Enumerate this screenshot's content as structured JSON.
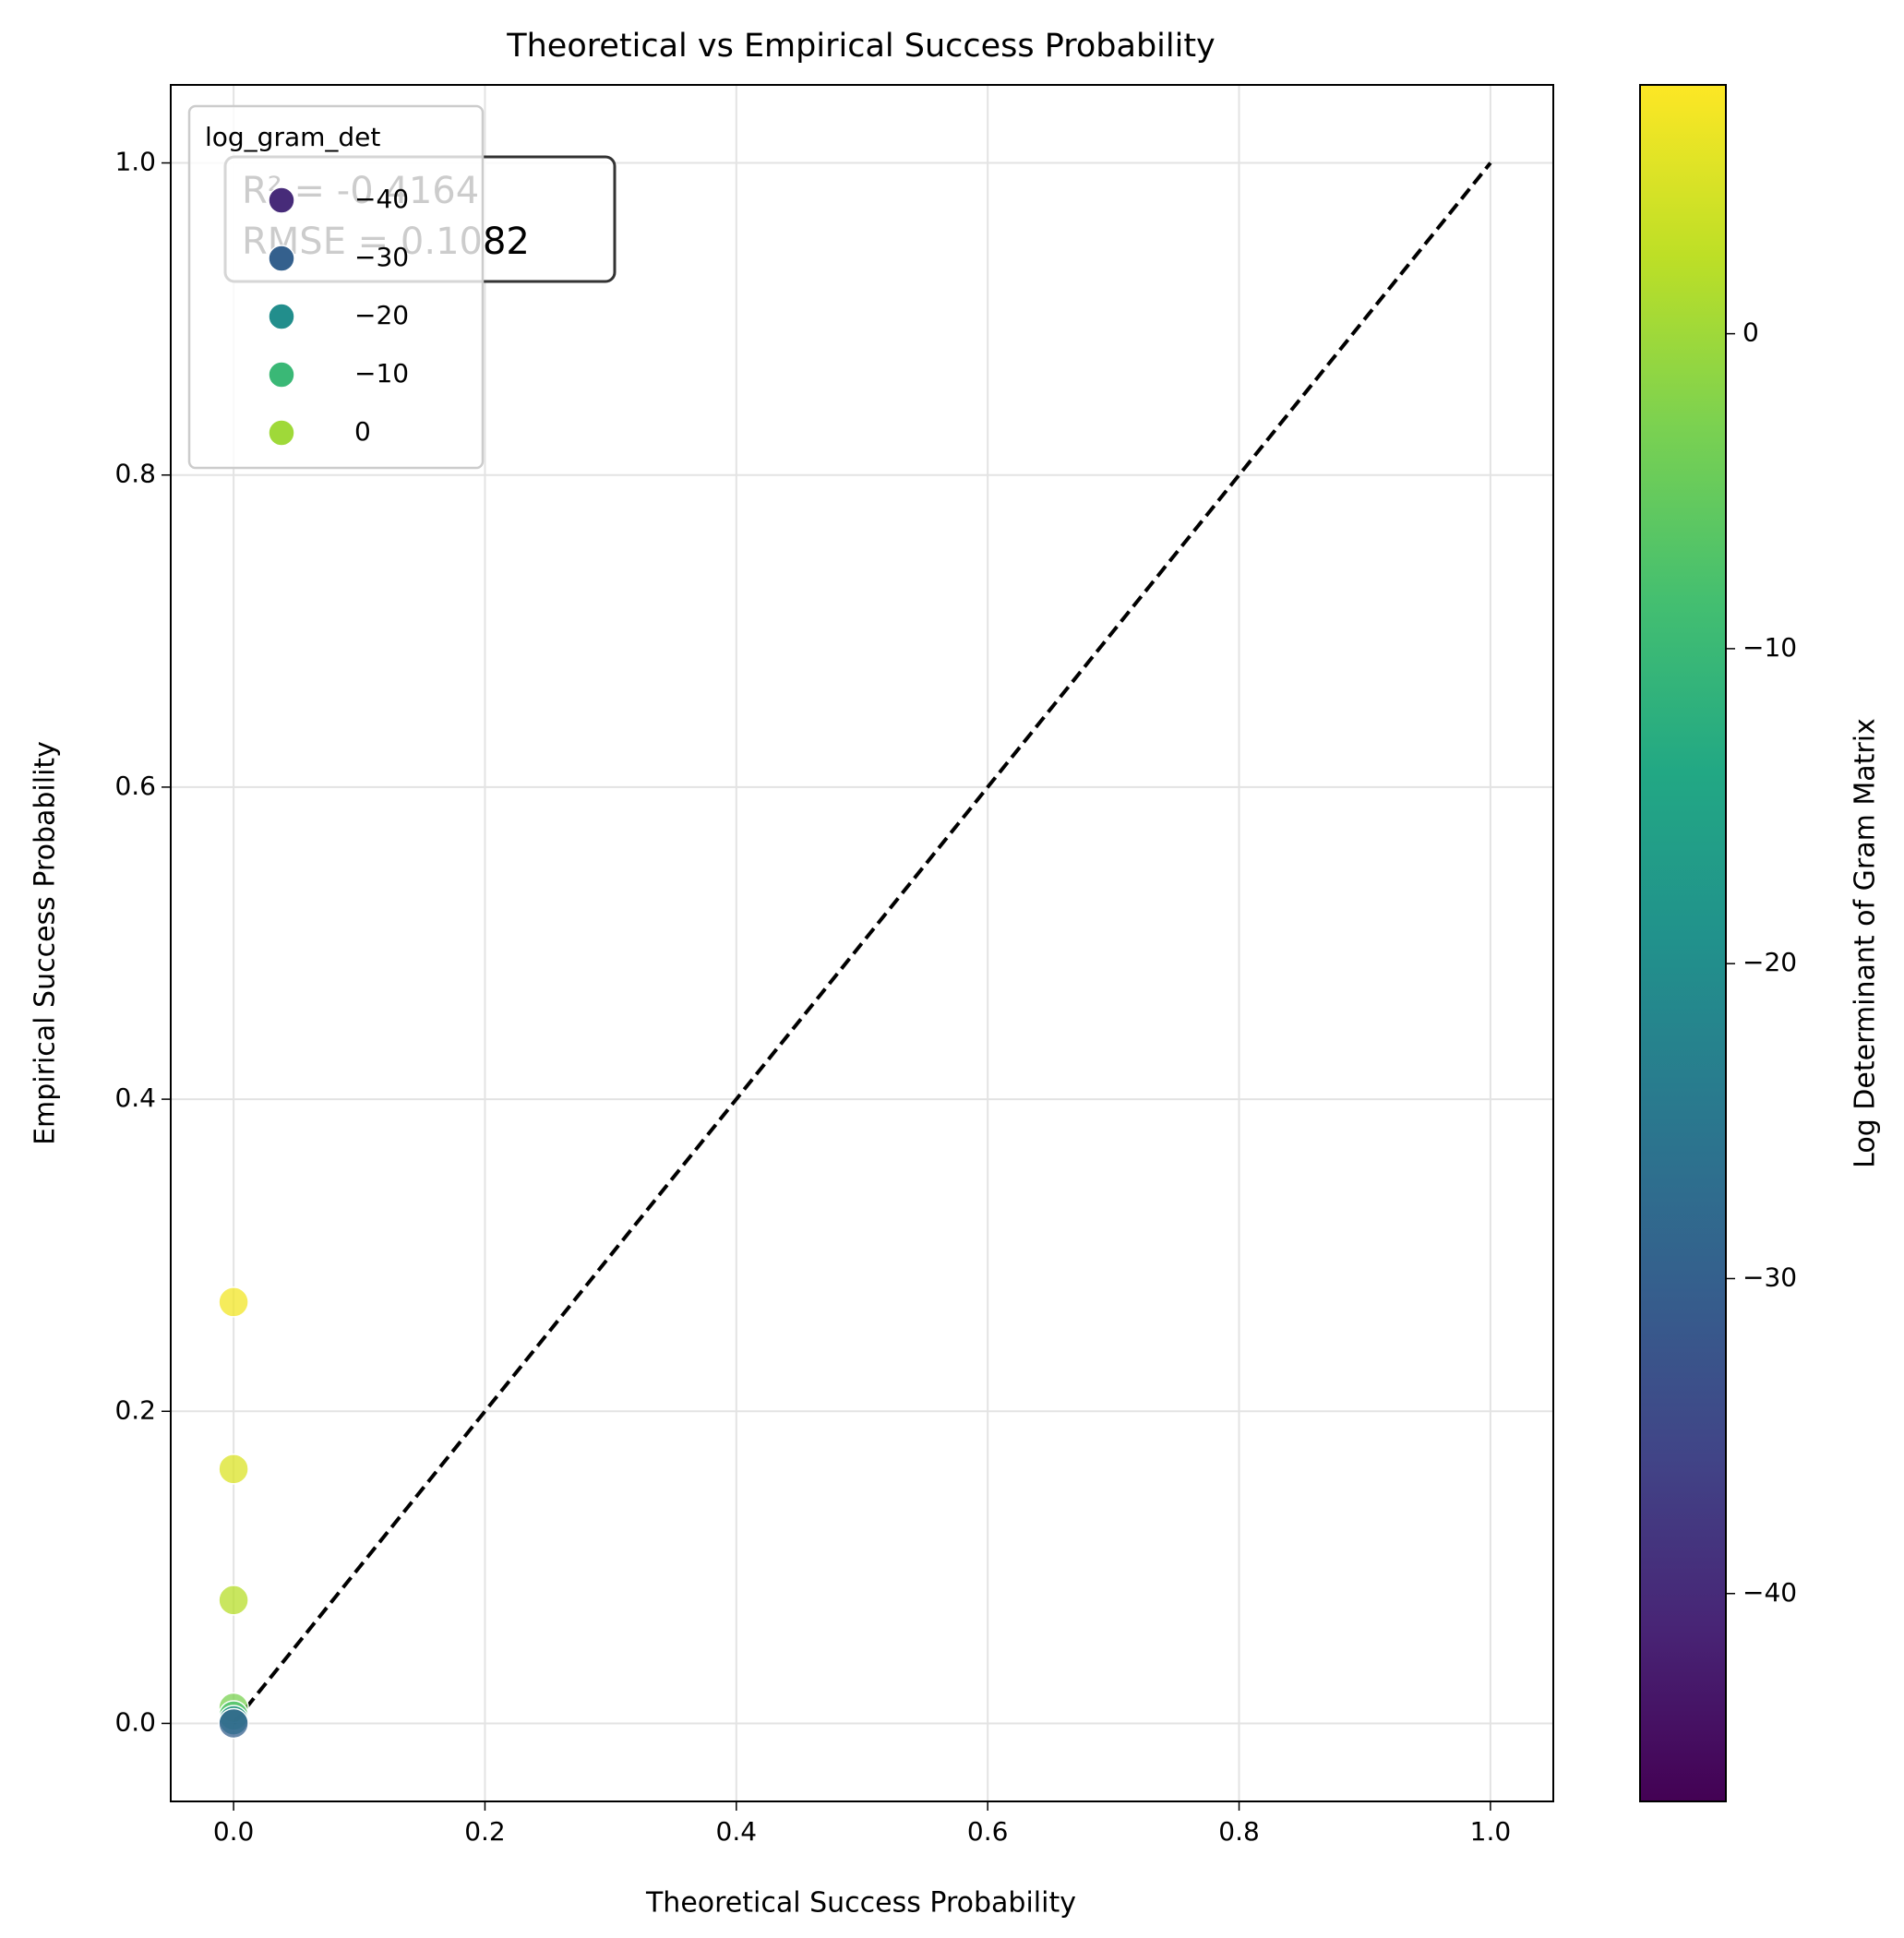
{
  "chart_data": {
    "type": "scatter",
    "title": "Theoretical vs Empirical Success Probability",
    "x_label": "Theoretical Success Probability",
    "y_label": "Empirical Success Probability",
    "x": [
      0,
      0,
      0,
      0,
      0,
      0,
      0
    ],
    "y": [
      0.27,
      0.163,
      0.079,
      0.01,
      0.005,
      0.002,
      0.0
    ],
    "c": [
      7,
      5,
      2,
      -3,
      -8,
      -20,
      -30
    ],
    "colormap": "viridis",
    "xlim": [
      -0.05,
      1.05
    ],
    "ylim": [
      -0.05,
      1.05
    ],
    "xticks": [
      {
        "value": 0,
        "label": "0.0"
      },
      0.2,
      0.4,
      0.6,
      0.8,
      {
        "value": 1,
        "label": "1.0"
      }
    ],
    "yticks": [
      {
        "value": 0,
        "label": "0.0"
      },
      0.2,
      0.4,
      0.6,
      0.8,
      {
        "value": 1,
        "label": "1.0"
      }
    ],
    "grid": true,
    "reference_line": {
      "x": [
        0,
        1
      ],
      "y": [
        0,
        1
      ]
    },
    "annotation": [
      "R² = -0.4164",
      "RMSE = 0.1082"
    ],
    "legend": {
      "title": "log_gram_det",
      "position": "upper left",
      "entries": [
        {
          "value": -40,
          "label": "−40"
        },
        {
          "value": -30,
          "label": "−30"
        },
        {
          "value": -20,
          "label": "−20"
        },
        {
          "value": -10,
          "label": "−10"
        },
        0
      ]
    },
    "colorbar": {
      "label": "Log Determinant of Gram Matrix",
      "clim": [
        -46.6,
        7.9
      ],
      "ticks": [
        {
          "value": -40,
          "label": "−40"
        },
        {
          "value": -30,
          "label": "−30"
        },
        {
          "value": -20,
          "label": "−20"
        },
        {
          "value": -10,
          "label": "−10"
        },
        0
      ]
    }
  }
}
